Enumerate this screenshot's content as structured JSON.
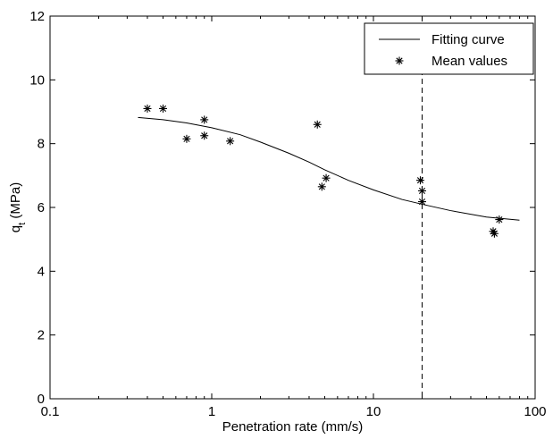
{
  "chart_data": {
    "type": "scatter",
    "xlabel": "Penetration rate (mm/s)",
    "ylabel_main": "q",
    "ylabel_sub": "t",
    "ylabel_tail": " (MPa)",
    "x_scale": "log",
    "xlim": [
      0.1,
      100
    ],
    "ylim": [
      0,
      12
    ],
    "x_ticks": [
      0.1,
      1,
      10,
      100
    ],
    "x_tick_labels": [
      "0.1",
      "1",
      "10",
      "100"
    ],
    "y_ticks": [
      0,
      2,
      4,
      6,
      8,
      10,
      12
    ],
    "y_tick_labels": [
      "0",
      "2",
      "4",
      "6",
      "8",
      "10",
      "12"
    ],
    "grid": false,
    "legend_position": "top-right",
    "vertical_reference_line": {
      "x": 20,
      "style": "dashed"
    },
    "series": [
      {
        "name": "Fitting curve",
        "kind": "line",
        "x": [
          0.35,
          0.5,
          0.7,
          1.0,
          1.5,
          2.0,
          3.0,
          4.0,
          5.0,
          7.0,
          10,
          15,
          20,
          30,
          50,
          80
        ],
        "y": [
          8.82,
          8.75,
          8.65,
          8.5,
          8.28,
          8.05,
          7.7,
          7.42,
          7.18,
          6.85,
          6.55,
          6.25,
          6.1,
          5.9,
          5.7,
          5.6
        ]
      },
      {
        "name": "Mean values",
        "kind": "scatter",
        "marker": "asterisk",
        "x": [
          0.4,
          0.5,
          0.7,
          0.9,
          0.9,
          1.3,
          4.5,
          4.8,
          5.1,
          19.5,
          20,
          20,
          55,
          56,
          60
        ],
        "y": [
          9.1,
          9.1,
          8.15,
          8.75,
          8.25,
          8.08,
          8.6,
          6.65,
          6.92,
          6.85,
          6.52,
          6.18,
          5.25,
          5.18,
          5.62
        ]
      }
    ]
  }
}
